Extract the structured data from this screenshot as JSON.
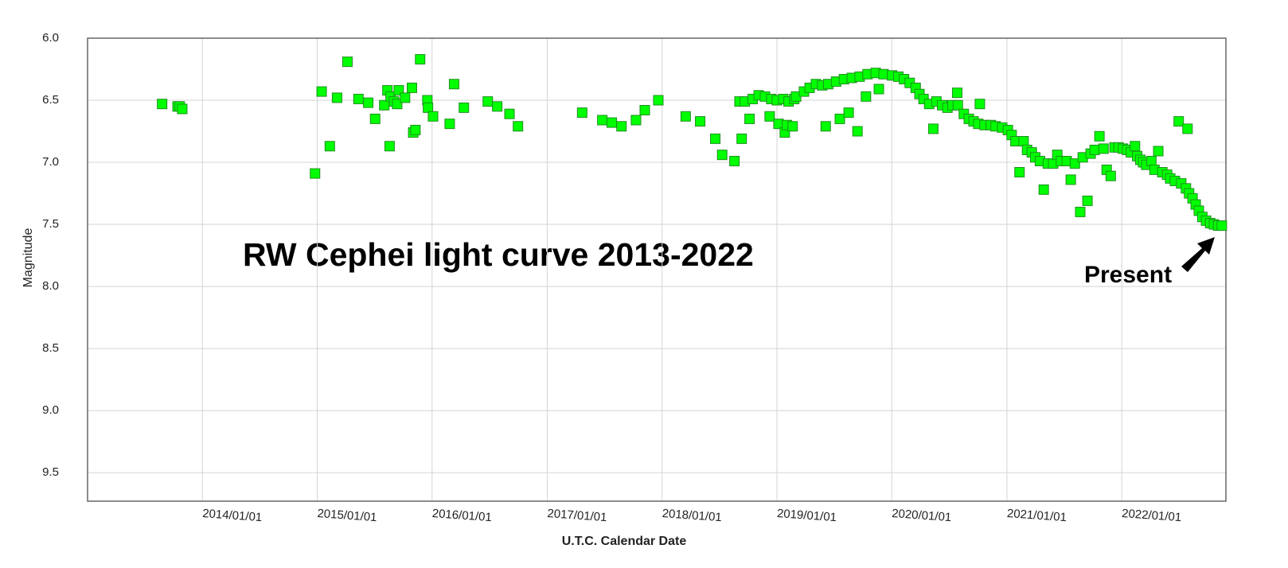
{
  "chart_data": {
    "type": "scatter",
    "x_label": "U.T.C. Calendar Date",
    "y_label": "Magnitude",
    "annotations": [
      {
        "text": "RW Cephei light curve 2013-2022"
      },
      {
        "text": "Present"
      }
    ],
    "color": "#00ff00",
    "edge_color": "#1f8f1f",
    "grid": true,
    "xlim": [
      "2013/01/01",
      "2022/11/28"
    ],
    "xticks": [
      "2014/01/01",
      "2015/01/01",
      "2016/01/01",
      "2017/01/01",
      "2018/01/01",
      "2019/01/01",
      "2020/01/01",
      "2021/01/01",
      "2022/01/01"
    ],
    "ylim": [
      9.73,
      6.0
    ],
    "yticks": [
      {
        "value": 6,
        "label": "6.0"
      },
      6.5,
      {
        "value": 7,
        "label": "7.0"
      },
      7.5,
      {
        "value": 8,
        "label": "8.0"
      },
      8.5,
      {
        "value": 9,
        "label": "9.0"
      },
      9.5
    ],
    "x": [
      "2013/08/26",
      "2013/10/14",
      "2013/10/21",
      "2013/10/29",
      "2014/12/25",
      "2015/01/15",
      "2015/02/10",
      "2015/03/05",
      "2015/04/07",
      "2015/05/12",
      "2015/06/12",
      "2015/07/04",
      "2015/08/02",
      "2015/08/12",
      "2015/08/19",
      "2015/08/22",
      "2015/09/02",
      "2015/09/12",
      "2015/09/17",
      "2015/10/07",
      "2015/10/29",
      "2015/11/02",
      "2015/11/09",
      "2015/11/24",
      "2015/12/17",
      "2015/12/19",
      "2016/01/04",
      "2016/02/26",
      "2016/03/11",
      "2016/04/11",
      "2016/06/26",
      "2016/07/26",
      "2016/09/03",
      "2016/09/30",
      "2017/04/22",
      "2017/06/25",
      "2017/07/25",
      "2017/08/25",
      "2017/10/10",
      "2017/11/07",
      "2017/12/20",
      "2018/03/17",
      "2018/05/02",
      "2018/06/19",
      "2018/07/11",
      "2018/08/19",
      "2018/09/04",
      "2018/09/11",
      "2018/09/21",
      "2018/10/06",
      "2018/10/16",
      "2018/11/04",
      "2018/11/24",
      "2018/12/09",
      "2018/12/14",
      "2019/01/01",
      "2019/01/06",
      "2019/01/21",
      "2019/01/26",
      "2019/02/02",
      "2019/02/07",
      "2019/02/20",
      "2019/02/25",
      "2019/03/03",
      "2019/03/28",
      "2019/04/15",
      "2019/05/05",
      "2019/05/25",
      "2019/06/05",
      "2019/06/13",
      "2019/07/08",
      "2019/07/20",
      "2019/08/02",
      "2019/08/17",
      "2019/08/27",
      "2019/09/14",
      "2019/09/21",
      "2019/10/11",
      "2019/10/16",
      "2019/11/11",
      "2019/11/21",
      "2019/12/06",
      "2020/01/02",
      "2020/01/22",
      "2020/02/09",
      "2020/02/27",
      "2020/03/17",
      "2020/03/29",
      "2020/04/11",
      "2020/04/29",
      "2020/05/12",
      "2020/05/22",
      "2020/06/09",
      "2020/06/26",
      "2020/07/12",
      "2020/07/27",
      "2020/07/29",
      "2020/08/17",
      "2020/09/02",
      "2020/09/17",
      "2020/10/02",
      "2020/10/07",
      "2020/10/22",
      "2020/11/11",
      "2020/11/26",
      "2020/12/17",
      "2021/01/04",
      "2021/01/16",
      "2021/01/28",
      "2021/02/10",
      "2021/02/23",
      "2021/03/06",
      "2021/03/21",
      "2021/04/01",
      "2021/04/16",
      "2021/04/28",
      "2021/05/11",
      "2021/05/28",
      "2021/06/10",
      "2021/06/22",
      "2021/07/10",
      "2021/07/23",
      "2021/08/05",
      "2021/08/22",
      "2021/08/30",
      "2021/09/14",
      "2021/09/24",
      "2021/10/07",
      "2021/10/22",
      "2021/11/04",
      "2021/11/14",
      "2021/11/27",
      "2021/12/09",
      "2021/12/22",
      "2022/01/05",
      "2022/01/18",
      "2022/01/30",
      "2022/02/12",
      "2022/02/19",
      "2022/03/01",
      "2022/03/10",
      "2022/03/20",
      "2022/04/05",
      "2022/04/15",
      "2022/04/27",
      "2022/05/10",
      "2022/05/25",
      "2022/06/04",
      "2022/06/19",
      "2022/07/01",
      "2022/07/09",
      "2022/07/24",
      "2022/07/29",
      "2022/08/03",
      "2022/08/14",
      "2022/08/24",
      "2022/09/03",
      "2022/09/14",
      "2022/09/26",
      "2022/10/09",
      "2022/10/21",
      "2022/11/03",
      "2022/11/15"
    ],
    "values": [
      6.53,
      6.55,
      6.55,
      6.57,
      7.09,
      6.43,
      6.87,
      6.48,
      6.19,
      6.49,
      6.52,
      6.65,
      6.54,
      6.42,
      6.87,
      6.47,
      6.51,
      6.53,
      6.42,
      6.48,
      6.4,
      6.76,
      6.74,
      6.17,
      6.5,
      6.56,
      6.63,
      6.69,
      6.37,
      6.56,
      6.51,
      6.55,
      6.61,
      6.71,
      6.6,
      6.66,
      6.68,
      6.71,
      6.66,
      6.58,
      6.5,
      6.63,
      6.67,
      6.81,
      6.94,
      6.99,
      6.51,
      6.81,
      6.51,
      6.65,
      6.49,
      6.46,
      6.47,
      6.63,
      6.49,
      6.5,
      6.69,
      6.49,
      6.76,
      6.7,
      6.51,
      6.71,
      6.49,
      6.47,
      6.43,
      6.4,
      6.37,
      6.38,
      6.71,
      6.37,
      6.35,
      6.65,
      6.33,
      6.6,
      6.32,
      6.75,
      6.31,
      6.47,
      6.29,
      6.28,
      6.41,
      6.29,
      6.3,
      6.31,
      6.33,
      6.36,
      6.4,
      6.45,
      6.49,
      6.53,
      6.73,
      6.51,
      6.54,
      6.56,
      6.54,
      6.44,
      6.54,
      6.61,
      6.65,
      6.67,
      6.69,
      6.53,
      6.7,
      6.7,
      6.71,
      6.72,
      6.74,
      6.78,
      6.83,
      7.08,
      6.83,
      6.9,
      6.92,
      6.96,
      6.99,
      7.22,
      7.01,
      7.01,
      6.94,
      6.99,
      6.99,
      7.14,
      7.01,
      7.4,
      6.96,
      7.31,
      6.93,
      6.9,
      6.79,
      6.89,
      7.06,
      7.11,
      6.88,
      6.88,
      6.89,
      6.9,
      6.92,
      6.87,
      6.95,
      6.98,
      7.0,
      7.02,
      6.99,
      7.06,
      6.91,
      7.08,
      7.1,
      7.13,
      7.15,
      6.67,
      7.17,
      7.21,
      6.73,
      7.25,
      7.29,
      7.34,
      7.39,
      7.44,
      7.47,
      7.49,
      7.5,
      7.51,
      7.51
    ]
  }
}
